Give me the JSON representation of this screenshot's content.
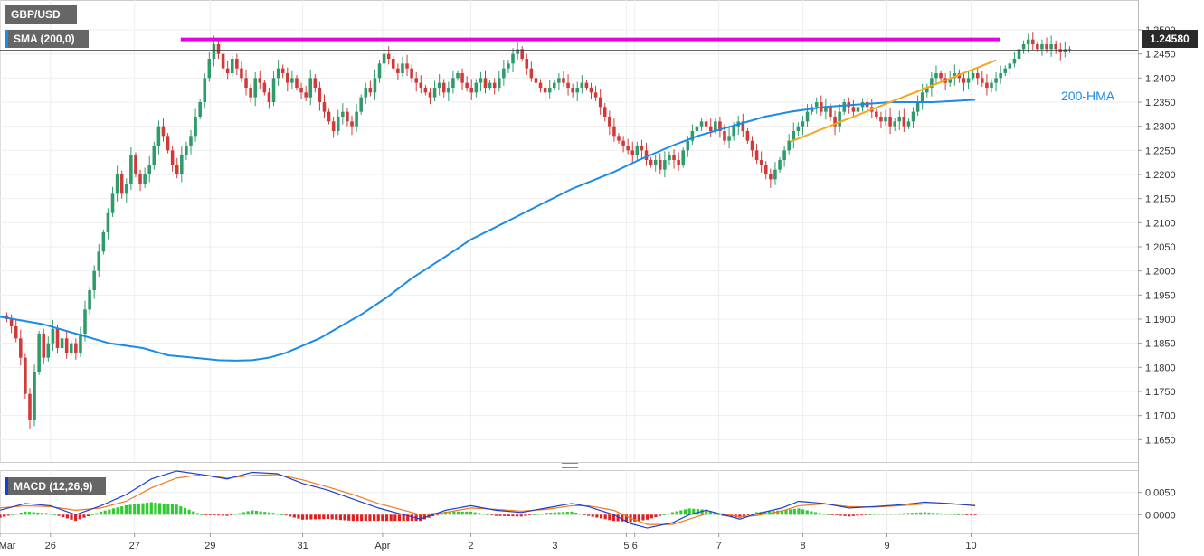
{
  "symbol": "GBP/USD",
  "indicator_label": "SMA (200,0)",
  "macd_label": "MACD (12,26,9)",
  "last_price": "1.24580",
  "hma_label": "200-HMA",
  "colors": {
    "bull": "#2e9b6b",
    "bear": "#d23a3a",
    "hma": "#1a8be8",
    "resistance": "#e600e6",
    "support": "#f5a623",
    "macd_line": "#1a3fd0",
    "signal_line": "#f07a1a",
    "hist_pos": "#2ecc2e",
    "hist_neg": "#e02020"
  },
  "chart_data": [
    {
      "type": "candlestick",
      "ylim": [
        1.163,
        1.253
      ],
      "y_ticks": [
        "1.2500",
        "1.2450",
        "1.2400",
        "1.2350",
        "1.2300",
        "1.2250",
        "1.2200",
        "1.2150",
        "1.2100",
        "1.2050",
        "1.2000",
        "1.1950",
        "1.1900",
        "1.1850",
        "1.1800",
        "1.1750",
        "1.1700",
        "1.1650"
      ],
      "x_ticks": [
        {
          "label": "Mar",
          "x": 0
        },
        {
          "label": "26",
          "x": 12
        },
        {
          "label": "27",
          "x": 32
        },
        {
          "label": "29",
          "x": 50
        },
        {
          "label": "31",
          "x": 72
        },
        {
          "label": "Apr",
          "x": 91
        },
        {
          "label": "2",
          "x": 112
        },
        {
          "label": "3",
          "x": 132
        },
        {
          "label": "5",
          "x": 149
        },
        {
          "label": "6",
          "x": 151
        },
        {
          "label": "7",
          "x": 171
        },
        {
          "label": "8",
          "x": 191
        },
        {
          "label": "9",
          "x": 211
        },
        {
          "label": "10",
          "x": 231
        }
      ],
      "x_range": [
        0,
        255
      ],
      "candles_close": [
        1.19,
        1.1885,
        1.186,
        1.182,
        1.1745,
        1.169,
        1.179,
        1.187,
        1.182,
        1.185,
        1.188,
        1.184,
        1.186,
        1.183,
        1.185,
        1.183,
        1.187,
        1.192,
        1.196,
        1.2,
        1.204,
        1.208,
        1.212,
        1.216,
        1.22,
        1.216,
        1.218,
        1.224,
        1.22,
        1.218,
        1.22,
        1.222,
        1.226,
        1.23,
        1.228,
        1.225,
        1.222,
        1.22,
        1.224,
        1.226,
        1.228,
        1.232,
        1.235,
        1.24,
        1.244,
        1.247,
        1.245,
        1.242,
        1.241,
        1.244,
        1.242,
        1.24,
        1.238,
        1.236,
        1.24,
        1.239,
        1.237,
        1.235,
        1.24,
        1.242,
        1.241,
        1.239,
        1.24,
        1.238,
        1.237,
        1.236,
        1.24,
        1.238,
        1.235,
        1.233,
        1.231,
        1.229,
        1.232,
        1.233,
        1.231,
        1.23,
        1.233,
        1.236,
        1.238,
        1.237,
        1.24,
        1.243,
        1.245,
        1.244,
        1.242,
        1.241,
        1.243,
        1.242,
        1.24,
        1.239,
        1.238,
        1.237,
        1.236,
        1.238,
        1.239,
        1.237,
        1.238,
        1.24,
        1.241,
        1.239,
        1.238,
        1.237,
        1.239,
        1.24,
        1.238,
        1.239,
        1.238,
        1.24,
        1.242,
        1.243,
        1.245,
        1.246,
        1.244,
        1.242,
        1.24,
        1.239,
        1.238,
        1.237,
        1.238,
        1.239,
        1.24,
        1.239,
        1.238,
        1.237,
        1.238,
        1.239,
        1.238,
        1.237,
        1.236,
        1.234,
        1.232,
        1.23,
        1.228,
        1.227,
        1.226,
        1.225,
        1.224,
        1.226,
        1.225,
        1.223,
        1.222,
        1.223,
        1.221,
        1.223,
        1.224,
        1.223,
        1.222,
        1.225,
        1.227,
        1.229,
        1.23,
        1.231,
        1.23,
        1.229,
        1.231,
        1.229,
        1.227,
        1.228,
        1.23,
        1.231,
        1.229,
        1.227,
        1.225,
        1.223,
        1.222,
        1.22,
        1.219,
        1.221,
        1.223,
        1.225,
        1.227,
        1.229,
        1.23,
        1.231,
        1.233,
        1.234,
        1.235,
        1.233,
        1.234,
        1.232,
        1.23,
        1.233,
        1.235,
        1.234,
        1.233,
        1.234,
        1.235,
        1.234,
        1.233,
        1.232,
        1.231,
        1.232,
        1.23,
        1.231,
        1.232,
        1.23,
        1.231,
        1.233,
        1.235,
        1.237,
        1.238,
        1.24,
        1.241,
        1.24,
        1.239,
        1.24,
        1.241,
        1.24,
        1.239,
        1.24,
        1.241,
        1.24,
        1.239,
        1.238,
        1.239,
        1.24,
        1.241,
        1.242,
        1.243,
        1.244,
        1.246,
        1.247,
        1.248,
        1.247,
        1.246,
        1.247,
        1.246,
        1.247,
        1.246,
        1.2455,
        1.246,
        1.2458
      ],
      "hma_200": [
        1.1905,
        1.189,
        1.187,
        1.185,
        1.184,
        1.1825,
        1.182,
        1.1815,
        1.1814,
        1.1815,
        1.182,
        1.183,
        1.1845,
        1.186,
        1.188,
        1.191,
        1.1945,
        1.1985,
        1.203,
        1.2065,
        1.21,
        1.2135,
        1.217,
        1.2205,
        1.223,
        1.226,
        1.228,
        1.23,
        1.232,
        1.233,
        1.234,
        1.2345,
        1.235,
        1.235,
        1.2355
      ],
      "hma_x": [
        0,
        10,
        18,
        26,
        34,
        40,
        46,
        52,
        56,
        60,
        64,
        68,
        72,
        76,
        80,
        86,
        92,
        98,
        106,
        112,
        120,
        128,
        136,
        146,
        152,
        160,
        166,
        174,
        182,
        188,
        196,
        204,
        212,
        222,
        232
      ],
      "resistance": {
        "y": 1.248,
        "x_from": 43,
        "x_to": 238
      },
      "support": {
        "x1": 188,
        "y1": 1.2268,
        "x2": 237,
        "y2": 1.2437
      }
    },
    {
      "type": "macd",
      "ylim": [
        -0.0038,
        0.01
      ],
      "y_ticks": [
        "0.0050",
        "0.0000"
      ],
      "macd": [
        0.001,
        0.0025,
        0.002,
        0.0,
        0.002,
        0.0045,
        0.008,
        0.0098,
        0.009,
        0.008,
        0.0095,
        0.0092,
        0.007,
        0.0055,
        0.0035,
        0.0015,
        0.0,
        -0.001,
        0.001,
        0.002,
        0.001,
        0.0005,
        0.0015,
        0.0025,
        0.0018,
        0.0,
        -0.002,
        -0.003,
        -0.0018,
        0.0,
        0.001,
        0.0,
        -0.001,
        0.0002,
        0.0015,
        0.003,
        0.0025,
        0.0015,
        0.0018,
        0.0022,
        0.0028,
        0.0025,
        0.002
      ],
      "signal": [
        0.0015,
        0.002,
        0.0018,
        0.001,
        0.0015,
        0.003,
        0.006,
        0.0082,
        0.009,
        0.0082,
        0.0088,
        0.009,
        0.0078,
        0.0062,
        0.0045,
        0.0025,
        0.001,
        0.0,
        0.0005,
        0.0015,
        0.0012,
        0.0008,
        0.0012,
        0.002,
        0.002,
        0.001,
        -0.0008,
        -0.0022,
        -0.0022,
        -0.001,
        0.0002,
        0.0002,
        -0.0005,
        -0.0002,
        0.0008,
        0.002,
        0.0024,
        0.0018,
        0.0017,
        0.002,
        0.0024,
        0.0024,
        0.0021
      ],
      "macd_x": [
        0,
        6,
        12,
        18,
        24,
        30,
        36,
        42,
        48,
        54,
        60,
        66,
        72,
        78,
        84,
        90,
        96,
        100,
        106,
        112,
        118,
        124,
        130,
        136,
        140,
        146,
        150,
        154,
        160,
        164,
        168,
        172,
        176,
        180,
        186,
        190,
        196,
        202,
        208,
        214,
        220,
        226,
        232
      ]
    }
  ]
}
